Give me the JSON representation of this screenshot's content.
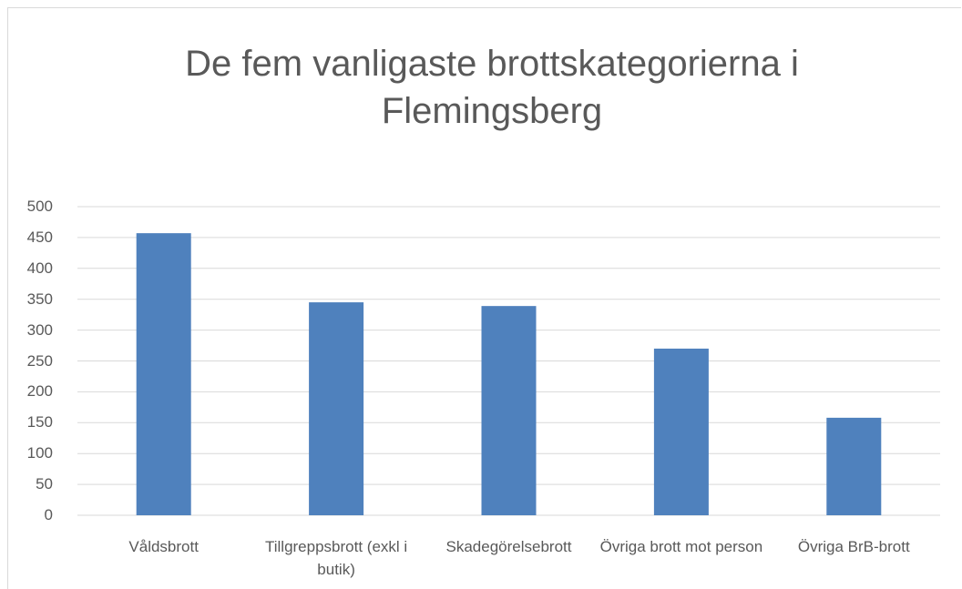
{
  "chart_data": {
    "type": "bar",
    "title": "De fem vanligaste brottskategorierna i Flemingsberg",
    "categories": [
      "Våldsbrott",
      "Tillgreppsbrott (exkl i butik)",
      "Skadegörelsebrott",
      "Övriga brott mot person",
      "Övriga BrB-brott"
    ],
    "values": [
      457,
      345,
      339,
      270,
      158
    ],
    "color": "#4f81bd",
    "ylim": [
      0,
      500
    ],
    "yticks": [
      0,
      50,
      100,
      150,
      200,
      250,
      300,
      350,
      400,
      450,
      500
    ],
    "grid": true
  }
}
